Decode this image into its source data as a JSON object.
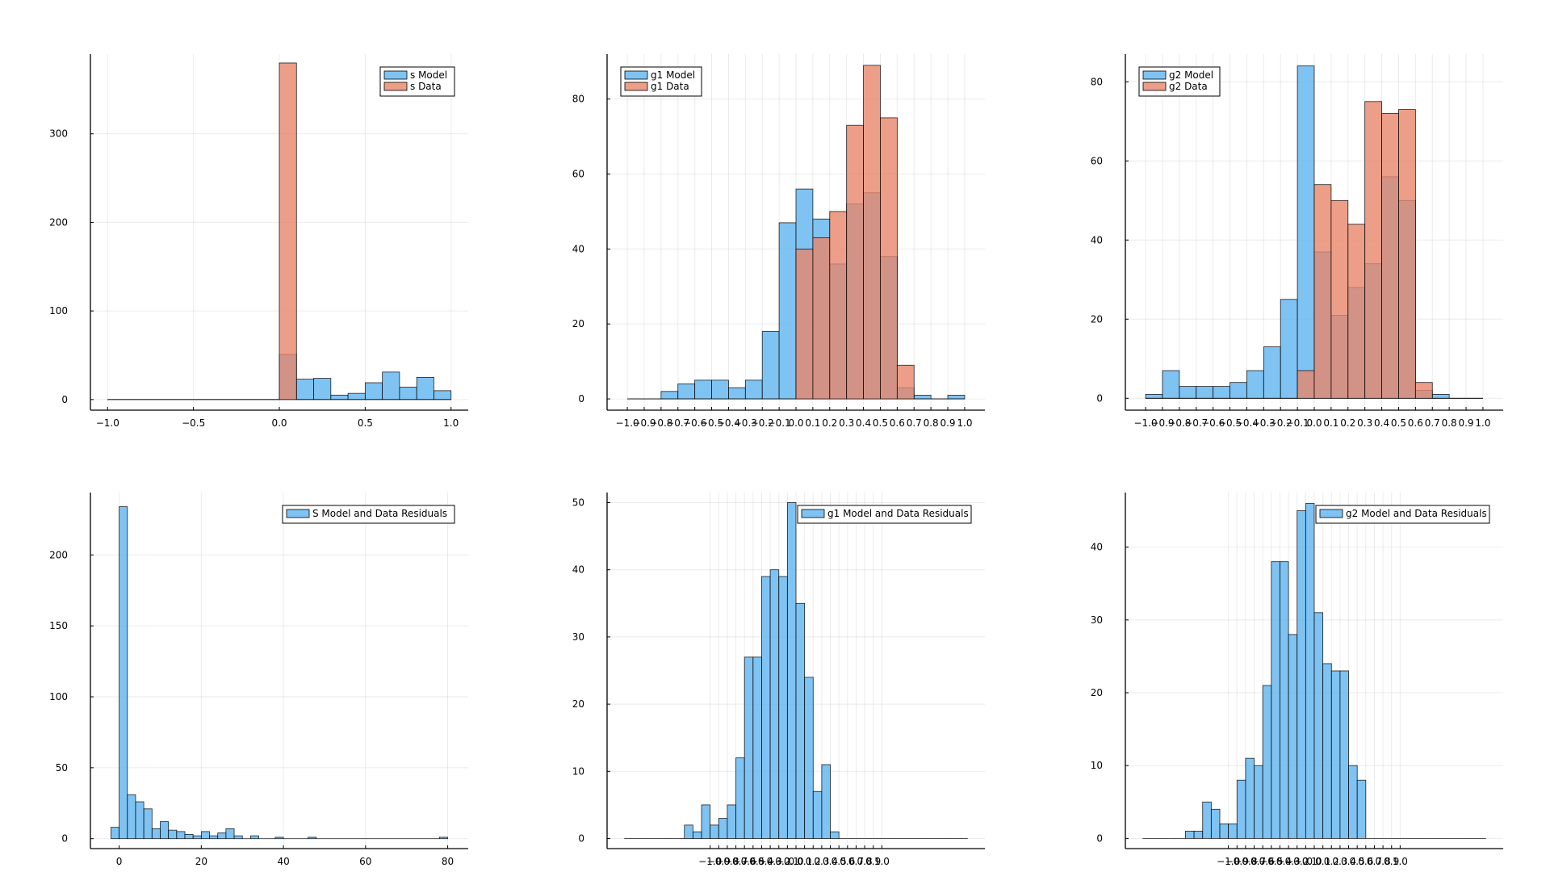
{
  "colors": {
    "model": "#5fb4f0",
    "data": "#e8866a",
    "background": "#ffffff"
  },
  "chart_data": [
    {
      "id": "s-hist",
      "type": "bar",
      "title": "",
      "xlabel": "",
      "ylabel": "",
      "xlim": [
        -1.1,
        1.1
      ],
      "ylim": [
        -12,
        390
      ],
      "xticks": [
        -1.0,
        -0.5,
        0.0,
        0.5,
        1.0
      ],
      "xtick_labels": [
        "−1.0",
        "−0.5",
        "0.0",
        "0.5",
        "1.0"
      ],
      "yticks": [
        0,
        100,
        200,
        300
      ],
      "ytick_labels": [
        "0",
        "100",
        "200",
        "300"
      ],
      "legend": {
        "position": "top-right"
      },
      "bins": {
        "start": -1.0,
        "width": 0.1
      },
      "series": [
        {
          "name": "s Model",
          "color": "model",
          "values": [
            0,
            0,
            0,
            0,
            0,
            0,
            0,
            0,
            0,
            0,
            51,
            23,
            24,
            5,
            7,
            19,
            31,
            14,
            25,
            10
          ]
        },
        {
          "name": "s Data",
          "color": "data",
          "values": [
            0,
            0,
            0,
            0,
            0,
            0,
            0,
            0,
            0,
            0,
            380,
            0,
            0,
            0,
            0,
            0,
            0,
            0,
            0,
            0
          ]
        }
      ]
    },
    {
      "id": "g1-hist",
      "type": "bar",
      "title": "",
      "xlabel": "",
      "ylabel": "",
      "xlim": [
        -1.12,
        1.12
      ],
      "ylim": [
        -3,
        92
      ],
      "xticks": [
        -1.0,
        -0.9,
        -0.8,
        -0.7,
        -0.6,
        -0.5,
        -0.4,
        -0.3,
        -0.2,
        -0.1,
        0.0,
        0.1,
        0.2,
        0.3,
        0.4,
        0.5,
        0.6,
        0.7,
        0.8,
        0.9,
        1.0
      ],
      "xtick_labels": [
        "−1.0",
        "−0.9",
        "−0.8",
        "−0.7",
        "−0.6",
        "−0.5",
        "−0.4",
        "−0.3",
        "−0.2",
        "−0.1",
        "0.0",
        "0.1",
        "0.2",
        "0.3",
        "0.4",
        "0.5",
        "0.6",
        "0.7",
        "0.8",
        "0.9",
        "1.0"
      ],
      "yticks": [
        0,
        20,
        40,
        60,
        80
      ],
      "ytick_labels": [
        "0",
        "20",
        "40",
        "60",
        "80"
      ],
      "legend": {
        "position": "top-left"
      },
      "bins": {
        "start": -1.0,
        "width": 0.1
      },
      "series": [
        {
          "name": "g1 Model",
          "color": "model",
          "values": [
            0,
            0,
            2,
            4,
            5,
            5,
            3,
            5,
            18,
            47,
            56,
            48,
            36,
            52,
            55,
            38,
            3,
            1,
            0,
            1
          ]
        },
        {
          "name": "g1 Data",
          "color": "data",
          "values": [
            0,
            0,
            0,
            0,
            0,
            0,
            0,
            0,
            0,
            0,
            40,
            43,
            50,
            73,
            89,
            75,
            9,
            0,
            0,
            0
          ]
        }
      ]
    },
    {
      "id": "g2-hist",
      "type": "bar",
      "title": "",
      "xlabel": "",
      "ylabel": "",
      "xlim": [
        -1.12,
        1.12
      ],
      "ylim": [
        -3,
        87
      ],
      "xticks": [
        -1.0,
        -0.9,
        -0.8,
        -0.7,
        -0.6,
        -0.5,
        -0.4,
        -0.3,
        -0.2,
        -0.1,
        0.0,
        0.1,
        0.2,
        0.3,
        0.4,
        0.5,
        0.6,
        0.7,
        0.8,
        0.9,
        1.0
      ],
      "xtick_labels": [
        "−1.0",
        "−0.9",
        "−0.8",
        "−0.7",
        "−0.6",
        "−0.5",
        "−0.4",
        "−0.3",
        "−0.2",
        "−0.1",
        "0.0",
        "0.1",
        "0.2",
        "0.3",
        "0.4",
        "0.5",
        "0.6",
        "0.7",
        "0.8",
        "0.9",
        "1.0"
      ],
      "yticks": [
        0,
        20,
        40,
        60,
        80
      ],
      "ytick_labels": [
        "0",
        "20",
        "40",
        "60",
        "80"
      ],
      "legend": {
        "position": "top-left"
      },
      "bins": {
        "start": -1.0,
        "width": 0.1
      },
      "series": [
        {
          "name": "g2 Model",
          "color": "model",
          "values": [
            1,
            7,
            3,
            3,
            3,
            4,
            7,
            13,
            25,
            84,
            37,
            21,
            28,
            34,
            56,
            50,
            2,
            1,
            0,
            0
          ]
        },
        {
          "name": "g2 Data",
          "color": "data",
          "values": [
            0,
            0,
            0,
            0,
            0,
            0,
            0,
            0,
            0,
            7,
            54,
            50,
            44,
            75,
            72,
            73,
            4,
            0,
            0,
            0
          ]
        }
      ]
    },
    {
      "id": "s-residuals",
      "type": "bar",
      "title": "",
      "xlabel": "",
      "ylabel": "",
      "xlim": [
        -7,
        85
      ],
      "ylim": [
        -7,
        244
      ],
      "xticks": [
        0,
        20,
        40,
        60,
        80
      ],
      "xtick_labels": [
        "0",
        "20",
        "40",
        "60",
        "80"
      ],
      "yticks": [
        0,
        50,
        100,
        150,
        200
      ],
      "ytick_labels": [
        "0",
        "50",
        "100",
        "150",
        "200"
      ],
      "legend": {
        "position": "top-right"
      },
      "bins": {
        "start": -2,
        "width": 2
      },
      "series": [
        {
          "name": "S Model and Data Residuals",
          "color": "model",
          "values": [
            8,
            234,
            31,
            26,
            21,
            7,
            12,
            6,
            5,
            3,
            2,
            5,
            2,
            4,
            7,
            2,
            0,
            2,
            0,
            0,
            1,
            0,
            0,
            0,
            1,
            0,
            0,
            0,
            0,
            0,
            0,
            0,
            0,
            0,
            0,
            0,
            0,
            0,
            0,
            0,
            1
          ]
        }
      ]
    },
    {
      "id": "g1-residuals",
      "type": "bar",
      "title": "",
      "xlabel": "",
      "ylabel": "",
      "xlim": [
        -2.2,
        2.2
      ],
      "ylim": [
        -1.5,
        51.5
      ],
      "xticks": [
        -1.0,
        -0.9,
        -0.8,
        -0.7,
        -0.6,
        -0.5,
        -0.4,
        -0.3,
        -0.2,
        -0.1,
        0.0,
        0.1,
        0.2,
        0.3,
        0.4,
        0.5,
        0.6,
        0.7,
        0.8,
        0.9,
        1.0
      ],
      "xtick_labels": [
        "−1.0",
        "−0.9",
        "−0.8",
        "−0.7",
        "−0.6",
        "−0.5",
        "−0.4",
        "−0.3",
        "−0.2",
        "−0.1",
        "0.0",
        "0.1",
        "0.2",
        "0.3",
        "0.4",
        "0.5",
        "0.6",
        "0.7",
        "0.8",
        "0.9",
        "1.0"
      ],
      "yticks": [
        0,
        10,
        20,
        30,
        40,
        50
      ],
      "ytick_labels": [
        "0",
        "10",
        "20",
        "30",
        "40",
        "50"
      ],
      "legend": {
        "position": "top-right"
      },
      "bins": {
        "start": -2.0,
        "width": 0.1
      },
      "series": [
        {
          "name": "g1 Model and Data Residuals",
          "color": "model",
          "values": [
            0,
            0,
            0,
            0,
            0,
            0,
            0,
            2,
            1,
            5,
            2,
            3,
            5,
            12,
            27,
            27,
            39,
            40,
            39,
            50,
            35,
            24,
            7,
            11,
            1,
            0,
            0,
            0,
            0,
            0,
            0,
            0,
            0,
            0,
            0,
            0,
            0,
            0,
            0,
            0
          ]
        }
      ]
    },
    {
      "id": "g2-residuals",
      "type": "bar",
      "title": "",
      "xlabel": "",
      "ylabel": "",
      "xlim": [
        -2.2,
        2.2
      ],
      "ylim": [
        -1.4,
        47.5
      ],
      "xticks": [
        -1.0,
        -0.9,
        -0.8,
        -0.7,
        -0.6,
        -0.5,
        -0.4,
        -0.3,
        -0.2,
        -0.1,
        0.0,
        0.1,
        0.2,
        0.3,
        0.4,
        0.5,
        0.6,
        0.7,
        0.8,
        0.9,
        1.0
      ],
      "xtick_labels": [
        "−1.0",
        "−0.9",
        "−0.8",
        "−0.7",
        "−0.6",
        "−0.5",
        "−0.4",
        "−0.3",
        "−0.2",
        "−0.1",
        "0.0",
        "0.1",
        "0.2",
        "0.3",
        "0.4",
        "0.5",
        "0.6",
        "0.7",
        "0.8",
        "0.9",
        "1.0"
      ],
      "yticks": [
        0,
        10,
        20,
        30,
        40
      ],
      "ytick_labels": [
        "0",
        "10",
        "20",
        "30",
        "40"
      ],
      "legend": {
        "position": "top-right"
      },
      "bins": {
        "start": -2.0,
        "width": 0.1
      },
      "series": [
        {
          "name": "g2 Model and Data Residuals",
          "color": "model",
          "values": [
            0,
            0,
            0,
            0,
            0,
            1,
            1,
            5,
            4,
            2,
            2,
            8,
            11,
            10,
            21,
            38,
            38,
            28,
            45,
            46,
            31,
            24,
            23,
            23,
            10,
            8,
            0,
            0,
            0,
            0,
            0,
            0,
            0,
            0,
            0,
            0,
            0,
            0,
            0,
            0
          ]
        }
      ]
    }
  ]
}
